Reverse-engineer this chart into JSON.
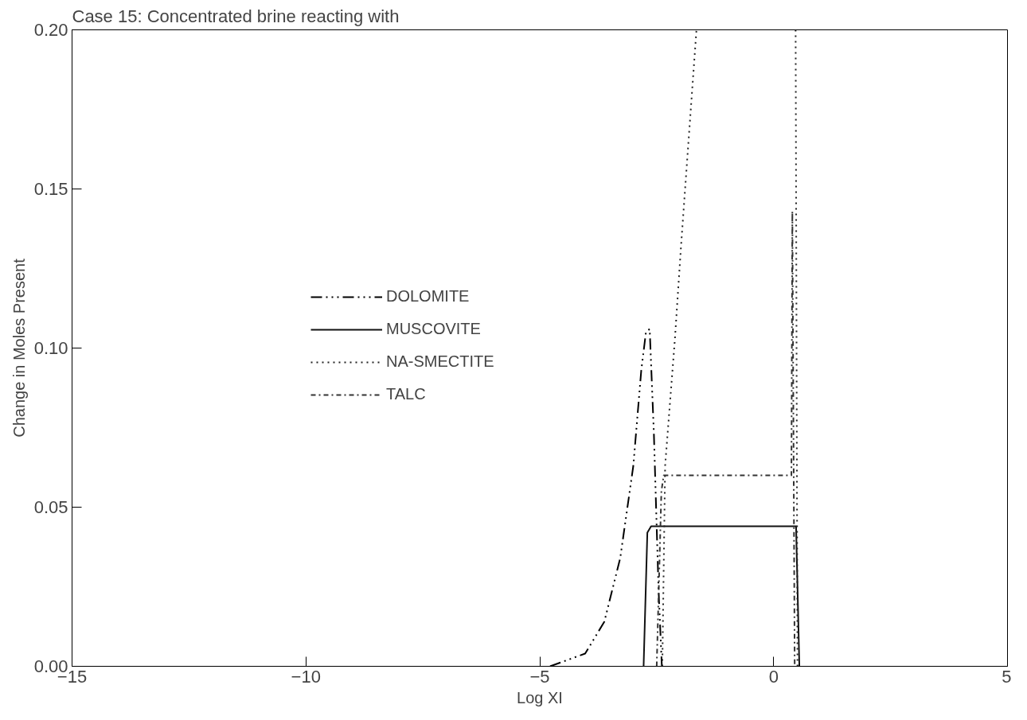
{
  "chart_data": {
    "type": "line",
    "title": "Case 15: Concentrated brine reacting with",
    "xlabel": "Log XI",
    "ylabel": "Change in Moles Present",
    "xlim": [
      -15,
      5
    ],
    "xticks": [
      -15,
      -10,
      -5,
      0,
      5
    ],
    "ylim": [
      0,
      0.2
    ],
    "yticks": [
      {
        "value": 0,
        "label": "0.00"
      },
      {
        "value": 0.05,
        "label": "0.05"
      },
      {
        "value": 0.1,
        "label": "0.10"
      },
      {
        "value": 0.15,
        "label": "0.15"
      },
      {
        "value": 0.2,
        "label": "0.20"
      }
    ],
    "grid": false,
    "legend": "left",
    "series": [
      {
        "name": "DOLOMITE",
        "color": "#000000",
        "line_style": "dashdotdot",
        "x": [
          -4.78,
          -4.03,
          -3.62,
          -3.28,
          -3.0,
          -2.83,
          -2.73,
          -2.65,
          -2.56,
          -2.46,
          -2.39
        ],
        "values": [
          0.0,
          0.004,
          0.014,
          0.034,
          0.063,
          0.093,
          0.105,
          0.106,
          0.073,
          0.024,
          0.0
        ]
      },
      {
        "name": "MUSCOVITE",
        "color": "#111111",
        "line_style": "solid",
        "x": [
          -2.78,
          -2.7,
          -2.62,
          0.48,
          0.55
        ],
        "values": [
          0.0,
          0.042,
          0.044,
          0.044,
          0.0
        ]
      },
      {
        "name": "NA-SMECTITE",
        "color": "#222222",
        "line_style": "dotted",
        "x": [
          -2.38,
          -2.32,
          -2.11,
          -1.98,
          -1.65,
          null,
          0.47,
          0.51
        ],
        "values": [
          0.0,
          0.063,
          0.103,
          0.132,
          0.2,
          null,
          0.2,
          0.0
        ]
      },
      {
        "name": "TALC",
        "color": "#333333",
        "line_style": "dashdot",
        "x": [
          -2.5,
          -2.4,
          -2.35,
          0.38,
          0.4,
          0.45
        ],
        "values": [
          0.0,
          0.055,
          0.06,
          0.06,
          0.143,
          0.0
        ]
      }
    ]
  }
}
